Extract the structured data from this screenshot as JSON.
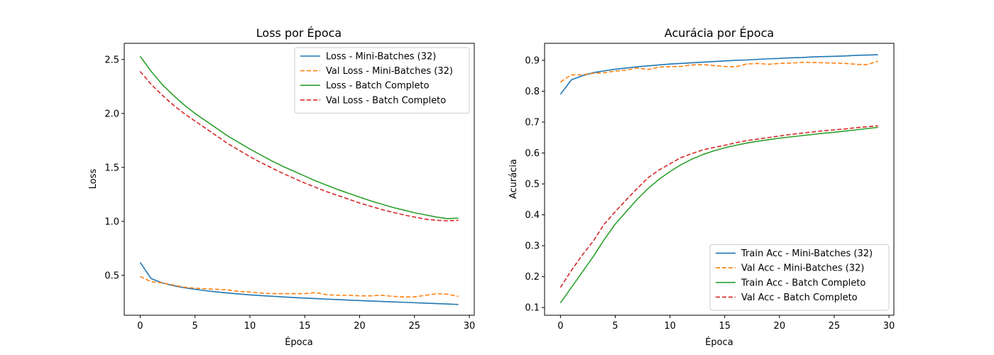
{
  "colors": {
    "blue": "#1f77b4",
    "orange": "#ff7f0e",
    "green": "#2ca02c",
    "red": "#d62728"
  },
  "chart_data": [
    {
      "type": "line",
      "title": "Loss por Época",
      "xlabel": "Época",
      "ylabel": "Loss",
      "xlim": [
        -1.45,
        30.45
      ],
      "ylim": [
        0.13,
        2.65
      ],
      "xticks": [
        0,
        5,
        10,
        15,
        20,
        25,
        30
      ],
      "yticks": [
        0.5,
        1.0,
        1.5,
        2.0,
        2.5
      ],
      "ytick_labels": [
        "0.5",
        "1.0",
        "1.5",
        "2.0",
        "2.5"
      ],
      "legend_position": "top-right",
      "grid": false,
      "x": [
        0,
        1,
        2,
        3,
        4,
        5,
        6,
        7,
        8,
        9,
        10,
        11,
        12,
        13,
        14,
        15,
        16,
        17,
        18,
        19,
        20,
        21,
        22,
        23,
        24,
        25,
        26,
        27,
        28,
        29
      ],
      "series": [
        {
          "name": "Loss - Mini-Batches (32)",
          "color": "#1f77b4",
          "style": "solid",
          "values": [
            0.62,
            0.47,
            0.43,
            0.405,
            0.385,
            0.37,
            0.357,
            0.346,
            0.336,
            0.327,
            0.319,
            0.312,
            0.306,
            0.3,
            0.294,
            0.289,
            0.284,
            0.279,
            0.275,
            0.27,
            0.266,
            0.262,
            0.258,
            0.254,
            0.25,
            0.246,
            0.242,
            0.238,
            0.234,
            0.23
          ]
        },
        {
          "name": "Val Loss - Mini-Batches (32)",
          "color": "#ff7f0e",
          "style": "dashed",
          "values": [
            0.49,
            0.44,
            0.43,
            0.41,
            0.39,
            0.38,
            0.375,
            0.37,
            0.365,
            0.35,
            0.345,
            0.335,
            0.33,
            0.33,
            0.33,
            0.33,
            0.34,
            0.32,
            0.315,
            0.315,
            0.31,
            0.31,
            0.315,
            0.305,
            0.3,
            0.3,
            0.315,
            0.33,
            0.325,
            0.305
          ]
        },
        {
          "name": "Loss - Batch Completo",
          "color": "#2ca02c",
          "style": "solid",
          "values": [
            2.53,
            2.39,
            2.27,
            2.17,
            2.08,
            2.0,
            1.93,
            1.86,
            1.79,
            1.73,
            1.67,
            1.615,
            1.56,
            1.51,
            1.465,
            1.42,
            1.375,
            1.335,
            1.295,
            1.26,
            1.225,
            1.19,
            1.16,
            1.13,
            1.105,
            1.08,
            1.06,
            1.04,
            1.025,
            1.03
          ]
        },
        {
          "name": "Val Loss - Batch Completo",
          "color": "#d62728",
          "style": "dashed",
          "values": [
            2.39,
            2.27,
            2.17,
            2.08,
            2.0,
            1.93,
            1.86,
            1.79,
            1.72,
            1.66,
            1.6,
            1.545,
            1.495,
            1.445,
            1.4,
            1.355,
            1.315,
            1.275,
            1.24,
            1.205,
            1.17,
            1.14,
            1.11,
            1.085,
            1.06,
            1.04,
            1.02,
            1.01,
            1.005,
            1.01
          ]
        }
      ]
    },
    {
      "type": "line",
      "title": "Acurácia por Época",
      "xlabel": "Época",
      "ylabel": "Acurácia",
      "xlim": [
        -1.45,
        30.45
      ],
      "ylim": [
        0.075,
        0.955
      ],
      "xticks": [
        0,
        5,
        10,
        15,
        20,
        25,
        30
      ],
      "yticks": [
        0.1,
        0.2,
        0.3,
        0.4,
        0.5,
        0.6,
        0.7,
        0.8,
        0.9
      ],
      "ytick_labels": [
        "0.1",
        "0.2",
        "0.3",
        "0.4",
        "0.5",
        "0.6",
        "0.7",
        "0.8",
        "0.9"
      ],
      "legend_position": "lower-right",
      "grid": false,
      "x": [
        0,
        1,
        2,
        3,
        4,
        5,
        6,
        7,
        8,
        9,
        10,
        11,
        12,
        13,
        14,
        15,
        16,
        17,
        18,
        19,
        20,
        21,
        22,
        23,
        24,
        25,
        26,
        27,
        28,
        29
      ],
      "series": [
        {
          "name": "Train Acc - Mini-Batches (32)",
          "color": "#1f77b4",
          "style": "solid",
          "values": [
            0.79,
            0.837,
            0.85,
            0.86,
            0.866,
            0.871,
            0.875,
            0.879,
            0.882,
            0.885,
            0.888,
            0.89,
            0.892,
            0.894,
            0.896,
            0.898,
            0.9,
            0.901,
            0.903,
            0.905,
            0.906,
            0.908,
            0.909,
            0.911,
            0.912,
            0.913,
            0.914,
            0.916,
            0.917,
            0.918
          ]
        },
        {
          "name": "Val Acc - Mini-Batches (32)",
          "color": "#ff7f0e",
          "style": "dashed",
          "values": [
            0.83,
            0.853,
            0.853,
            0.858,
            0.86,
            0.865,
            0.868,
            0.875,
            0.87,
            0.878,
            0.879,
            0.88,
            0.885,
            0.886,
            0.883,
            0.88,
            0.879,
            0.888,
            0.89,
            0.887,
            0.89,
            0.891,
            0.893,
            0.893,
            0.892,
            0.891,
            0.89,
            0.887,
            0.886,
            0.897
          ]
        },
        {
          "name": "Train Acc - Batch Completo",
          "color": "#2ca02c",
          "style": "solid",
          "values": [
            0.115,
            0.165,
            0.215,
            0.265,
            0.32,
            0.37,
            0.41,
            0.45,
            0.485,
            0.515,
            0.54,
            0.562,
            0.58,
            0.595,
            0.607,
            0.617,
            0.625,
            0.632,
            0.638,
            0.643,
            0.648,
            0.652,
            0.656,
            0.66,
            0.664,
            0.667,
            0.671,
            0.675,
            0.679,
            0.683
          ]
        },
        {
          "name": "Val Acc - Batch Completo",
          "color": "#d62728",
          "style": "dashed",
          "values": [
            0.165,
            0.22,
            0.27,
            0.315,
            0.37,
            0.41,
            0.448,
            0.485,
            0.52,
            0.545,
            0.565,
            0.585,
            0.598,
            0.61,
            0.618,
            0.625,
            0.633,
            0.64,
            0.645,
            0.65,
            0.655,
            0.66,
            0.664,
            0.668,
            0.672,
            0.675,
            0.678,
            0.682,
            0.685,
            0.688
          ]
        }
      ]
    }
  ]
}
